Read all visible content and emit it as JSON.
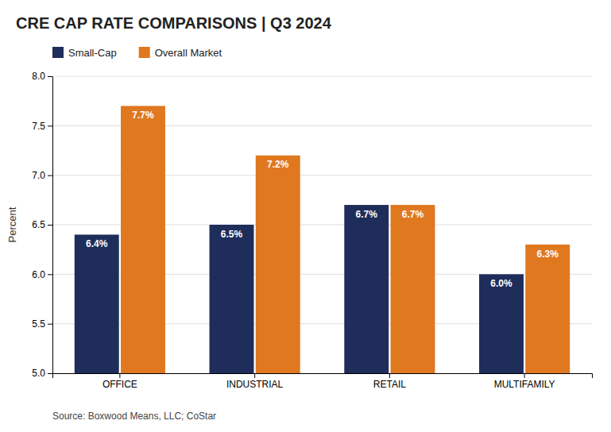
{
  "chart_data": {
    "type": "bar",
    "title": "CRE CAP RATE COMPARISONS | Q3 2024",
    "categories": [
      "OFFICE",
      "INDUSTRIAL",
      "RETAIL",
      "MULTIFAMILY"
    ],
    "series": [
      {
        "name": "Small-Cap",
        "color": "#1e2d5a",
        "values": [
          6.4,
          6.5,
          6.7,
          6.0
        ],
        "value_labels": [
          "6.4%",
          "6.5%",
          "6.7%",
          "6.0%"
        ]
      },
      {
        "name": "Overall Market",
        "color": "#e07820",
        "values": [
          7.7,
          7.2,
          6.7,
          6.3
        ],
        "value_labels": [
          "7.7%",
          "7.2%",
          "6.7%",
          "6.3%"
        ]
      }
    ],
    "ylabel": "Percent",
    "ylim": [
      5.0,
      8.0
    ],
    "yticks": [
      {
        "value": 5.0,
        "label": "5.0"
      },
      {
        "value": 5.5,
        "label": "5.5"
      },
      {
        "value": 6.0,
        "label": "6.0"
      },
      {
        "value": 6.5,
        "label": "6.5"
      },
      {
        "value": 7.0,
        "label": "7.0"
      },
      {
        "value": 7.5,
        "label": "7.5"
      },
      {
        "value": 8.0,
        "label": "8.0"
      }
    ],
    "grid": true,
    "legend": "top",
    "data_labels": true,
    "source": "Source: Boxwood Means, LLC; CoStar"
  }
}
